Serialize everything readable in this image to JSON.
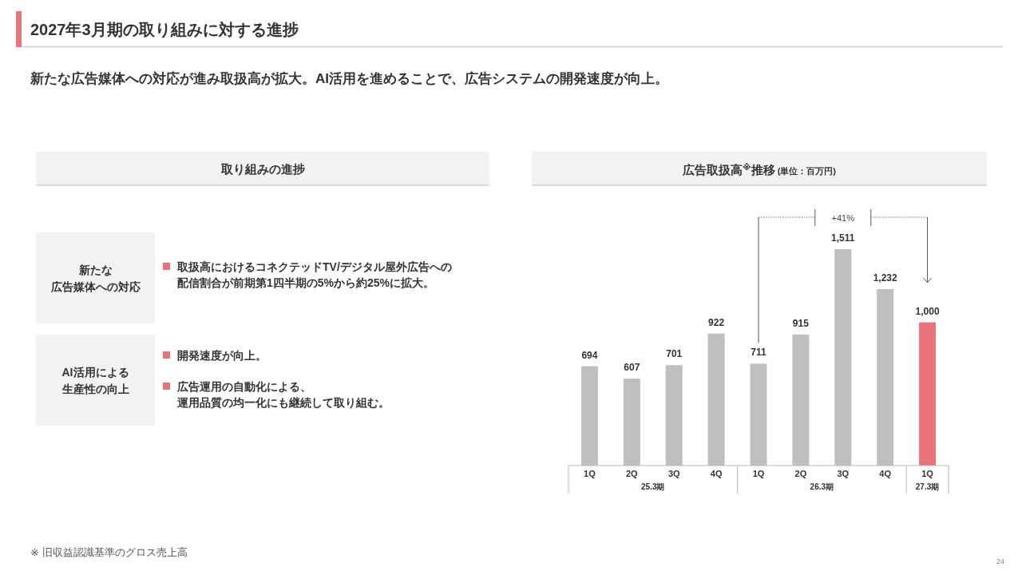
{
  "chart_data": [
    {
      "type": "other",
      "title": "2027年3月期の取り組みに対する進捗",
      "subtitle": "新たな広告媒体への対応が進み取扱高が拡大。AI活用を進めることで、広告システムの開発速度が向上。",
      "annotations": [
        "24"
      ]
    },
    {
      "type": "other",
      "title": "取り組みの進捗",
      "annotations": [
        "新たな広告媒体への対応",
        "取扱高におけるコネクテッドTV/デジタル屋外広告への配信割合が前期第1四半期の5%から約25%に拡大。",
        "AI活用による生産性の向上",
        "開発速度が向上。",
        "広告運用の自動化による、運用品質の均一化にも継続して取り組む。"
      ]
    },
    {
      "type": "bar",
      "title": "広告取扱高$^{※}$推移",
      "subtitle": "(単位：百万円)",
      "categories": [
        "1Q",
        "2Q",
        "3Q",
        "4Q",
        "1Q",
        "2Q",
        "3Q",
        "4Q",
        "1Q"
      ],
      "values": [
        694,
        607,
        701,
        922,
        711,
        915,
        1511,
        1232,
        1000
      ],
      "colors": [
        "#bfbfbf",
        "#bfbfbf",
        "#bfbfbf",
        "#bfbfbf",
        "#bfbfbf",
        "#bfbfbf",
        "#bfbfbf",
        "#bfbfbf",
        "#e8737a"
      ],
      "value_labels": [
        "694",
        "607",
        "701",
        "922",
        "711",
        "915",
        "1,511",
        "1,232",
        "1,000"
      ],
      "annotations": [
        "25.3期",
        "26.3期",
        "27.3期",
        "+41%",
        "※ 旧収益認識基準のグロス売上高"
      ]
    }
  ]
}
